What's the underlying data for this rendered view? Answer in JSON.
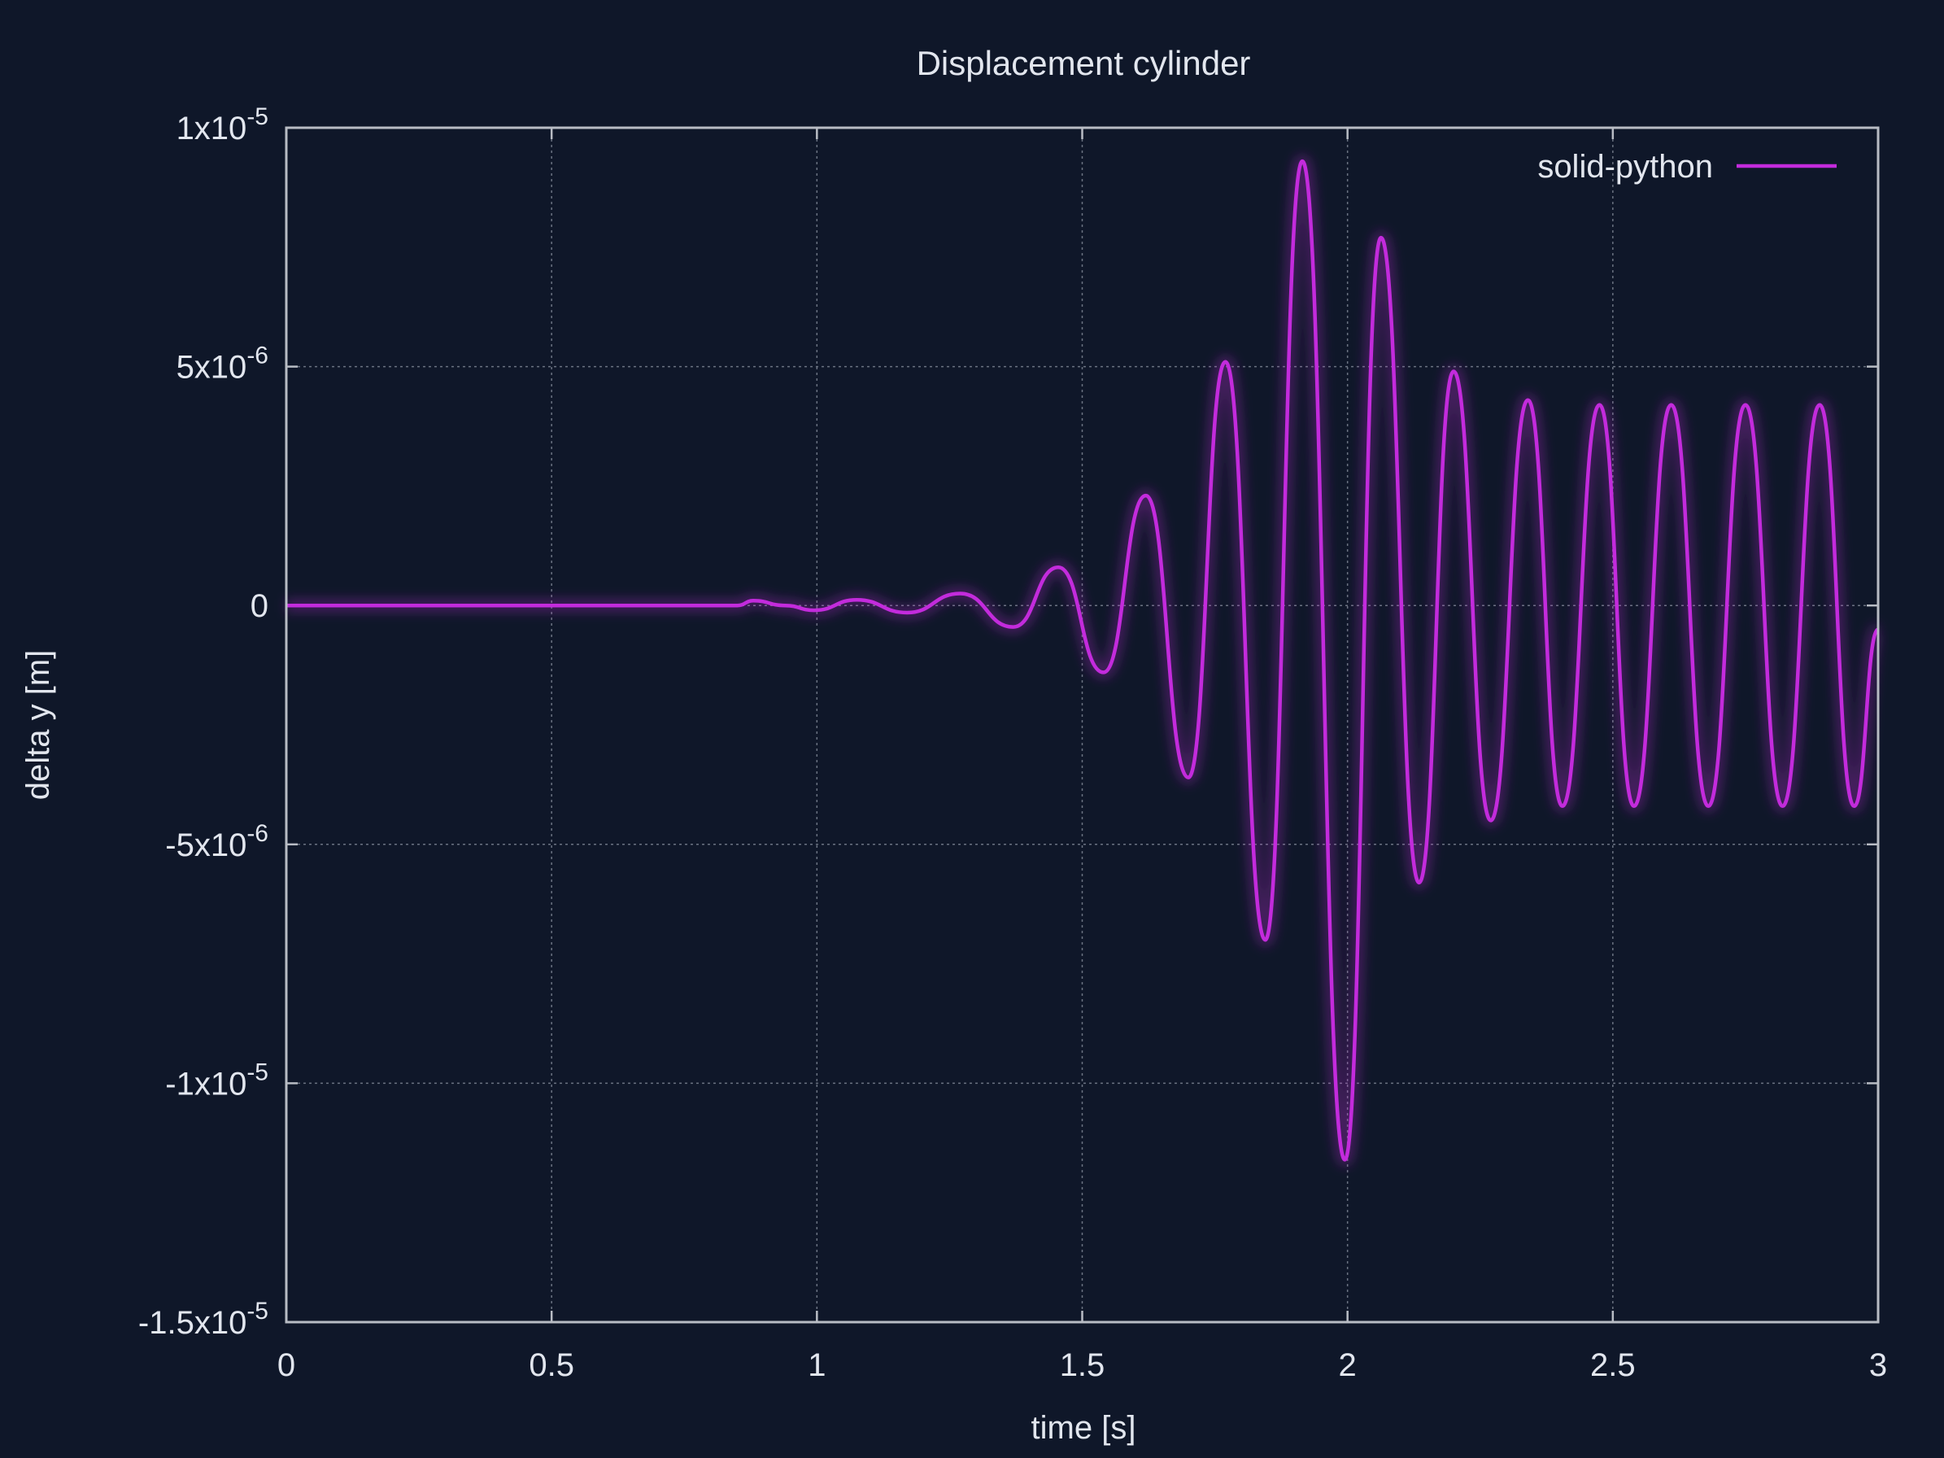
{
  "chart_data": {
    "type": "line",
    "title": "Displacement cylinder",
    "xlabel": "time [s]",
    "ylabel": "delta y [m]",
    "xlim": [
      0,
      3
    ],
    "ylim": [
      -1.5e-05,
      1e-05
    ],
    "grid": true,
    "legend_position": "top-right",
    "x_ticks": [
      {
        "value": 0,
        "label": "0"
      },
      {
        "value": 0.5,
        "label": "0.5"
      },
      {
        "value": 1,
        "label": "1"
      },
      {
        "value": 1.5,
        "label": "1.5"
      },
      {
        "value": 2,
        "label": "2"
      },
      {
        "value": 2.5,
        "label": "2.5"
      },
      {
        "value": 3,
        "label": "3"
      }
    ],
    "y_ticks": [
      {
        "value": 1e-05,
        "mantissa": "1x10",
        "exponent": "-5"
      },
      {
        "value": 5e-06,
        "mantissa": "5x10",
        "exponent": "-6"
      },
      {
        "value": 0,
        "mantissa": "0",
        "exponent": ""
      },
      {
        "value": -5e-06,
        "mantissa": "-5x10",
        "exponent": "-6"
      },
      {
        "value": -1e-05,
        "mantissa": "-1x10",
        "exponent": "-5"
      },
      {
        "value": -1.5e-05,
        "mantissa": "-1.5x10",
        "exponent": "-5"
      }
    ],
    "series": [
      {
        "name": "solid-python",
        "color": "#c32bdc",
        "points": [
          [
            0,
            0
          ],
          [
            0.05,
            0.0
          ],
          [
            0.1,
            0.0
          ],
          [
            0.15,
            0.0
          ],
          [
            0.2,
            0.0
          ],
          [
            0.25,
            0.0
          ],
          [
            0.3,
            0.0
          ],
          [
            0.35,
            0.0
          ],
          [
            0.4,
            0.0
          ],
          [
            0.45,
            0.0
          ],
          [
            0.5,
            0.0
          ],
          [
            0.55,
            0.0
          ],
          [
            0.6,
            0.0
          ],
          [
            0.65,
            0.0
          ],
          [
            0.7,
            0.0
          ],
          [
            0.75,
            0.0
          ],
          [
            0.8,
            0.0
          ],
          [
            0.85,
            0.0
          ],
          [
            0.88,
            1e-07
          ],
          [
            0.94,
            0.0
          ],
          [
            0.995,
            -1e-07
          ],
          [
            1.075,
            1.2e-07
          ],
          [
            1.17,
            -1.5e-07
          ],
          [
            1.27,
            2.5e-07
          ],
          [
            1.37,
            -4.5e-07
          ],
          [
            1.455,
            8e-07
          ],
          [
            1.54,
            -1.4e-06
          ],
          [
            1.62,
            2.3e-06
          ],
          [
            1.7,
            -3.6e-06
          ],
          [
            1.77,
            5.1e-06
          ],
          [
            1.845,
            -7e-06
          ],
          [
            1.915,
            9.3e-06
          ],
          [
            1.995,
            -1.16e-05
          ],
          [
            2.063,
            7.7e-06
          ],
          [
            2.135,
            -5.8e-06
          ],
          [
            2.2,
            4.9e-06
          ],
          [
            2.27,
            -4.5e-06
          ],
          [
            2.34,
            4.3e-06
          ],
          [
            2.405,
            -4.2e-06
          ],
          [
            2.475,
            4.2e-06
          ],
          [
            2.54,
            -4.2e-06
          ],
          [
            2.61,
            4.2e-06
          ],
          [
            2.68,
            -4.2e-06
          ],
          [
            2.75,
            4.2e-06
          ],
          [
            2.82,
            -4.2e-06
          ],
          [
            2.89,
            4.2e-06
          ],
          [
            2.955,
            -4.2e-06
          ],
          [
            3.0,
            -5e-07
          ]
        ]
      }
    ]
  }
}
